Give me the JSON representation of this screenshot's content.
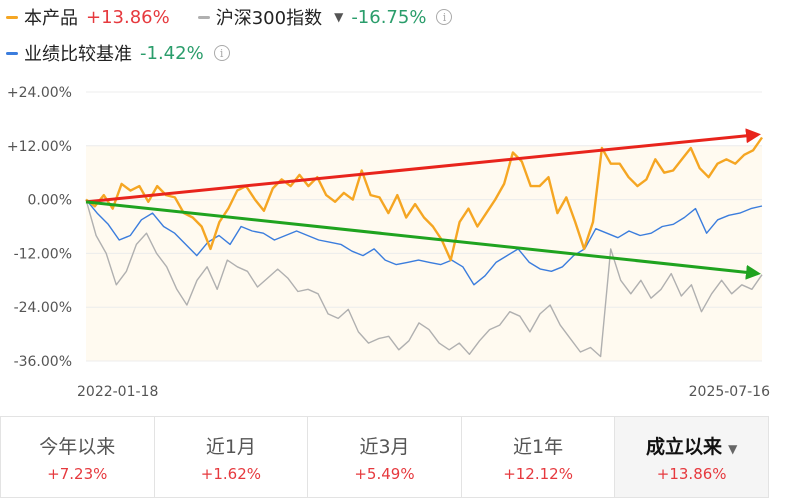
{
  "legend": {
    "product": {
      "name": "本产品",
      "value": "+13.86%",
      "color": "#f5a623"
    },
    "index": {
      "name": "沪深300指数",
      "value": "-16.75%",
      "color": "#b0b0b0",
      "dropdown_icon": "caret-down-icon"
    },
    "benchmark": {
      "name": "业绩比较基准",
      "value": "-1.42%",
      "color": "#3b7ddd"
    },
    "info_icon": "info-circle-icon"
  },
  "chart_data": {
    "type": "line",
    "x_start_label": "2022-01-18",
    "x_end_label": "2025-07-16",
    "y_ticks": [
      "+24.00%",
      "+12.00%",
      "0.00%",
      "-12.00%",
      "-24.00%",
      "-36.00%"
    ],
    "ylim": [
      -36,
      24
    ],
    "series": [
      {
        "name": "本产品",
        "color": "#f5a623",
        "values": [
          0.0,
          -1.5,
          1.0,
          -2.0,
          3.5,
          2.0,
          3.0,
          -0.5,
          3.0,
          1.0,
          0.5,
          -3.0,
          -4.0,
          -6.0,
          -11.0,
          -5.0,
          -2.0,
          2.0,
          3.0,
          0.0,
          -2.5,
          2.5,
          4.5,
          3.0,
          5.5,
          3.0,
          5.0,
          1.0,
          -0.5,
          1.5,
          0.0,
          6.5,
          1.0,
          0.5,
          -3.0,
          1.0,
          -4.0,
          -1.0,
          -4.0,
          -6.0,
          -9.0,
          -13.5,
          -5.0,
          -2.0,
          -6.0,
          -3.0,
          0.0,
          3.5,
          10.5,
          8.5,
          3.0,
          3.0,
          5.0,
          -3.0,
          0.5,
          -5.0,
          -11.0,
          -5.0,
          11.5,
          8.0,
          8.0,
          5.0,
          3.0,
          4.5,
          9.0,
          6.0,
          6.5,
          9.0,
          11.5,
          7.0,
          5.0,
          8.0,
          9.0,
          8.0,
          10.0,
          11.0,
          13.86
        ]
      },
      {
        "name": "沪深300指数",
        "color": "#b0b0b0",
        "values": [
          0.0,
          -8.0,
          -12.0,
          -19.0,
          -16.0,
          -10.0,
          -7.5,
          -12.0,
          -15.0,
          -20.0,
          -23.5,
          -18.0,
          -15.0,
          -20.0,
          -13.5,
          -15.0,
          -16.0,
          -19.5,
          -17.5,
          -15.5,
          -17.5,
          -20.5,
          -20.0,
          -21.0,
          -25.5,
          -26.5,
          -24.5,
          -29.5,
          -32.0,
          -31.0,
          -30.5,
          -33.5,
          -31.5,
          -27.5,
          -29.0,
          -32.0,
          -33.5,
          -32.0,
          -34.5,
          -31.5,
          -29.0,
          -28.0,
          -25.0,
          -26.0,
          -29.5,
          -25.5,
          -23.5,
          -28.0,
          -31.0,
          -34.0,
          -33.0,
          -35.0,
          -11.0,
          -18.0,
          -21.0,
          -18.0,
          -22.0,
          -20.0,
          -16.5,
          -21.5,
          -19.0,
          -25.0,
          -21.0,
          -18.0,
          -21.0,
          -19.0,
          -20.0,
          -16.75
        ]
      },
      {
        "name": "业绩比较基准",
        "color": "#3b7ddd",
        "values": [
          0.0,
          -3.0,
          -5.5,
          -9.0,
          -8.0,
          -4.5,
          -3.0,
          -6.0,
          -7.5,
          -10.0,
          -12.5,
          -9.5,
          -8.0,
          -10.0,
          -6.0,
          -7.0,
          -7.5,
          -9.0,
          -8.0,
          -7.0,
          -8.0,
          -9.0,
          -9.5,
          -10.0,
          -11.5,
          -12.5,
          -11.0,
          -13.5,
          -14.5,
          -14.0,
          -13.5,
          -14.0,
          -14.5,
          -13.5,
          -15.0,
          -19.0,
          -17.0,
          -14.0,
          -12.5,
          -11.0,
          -14.0,
          -15.5,
          -16.0,
          -15.0,
          -12.5,
          -11.0,
          -6.5,
          -7.5,
          -8.5,
          -7.0,
          -8.0,
          -7.5,
          -6.0,
          -5.5,
          -4.0,
          -2.0,
          -7.5,
          -4.5,
          -3.5,
          -3.0,
          -2.0,
          -1.42
        ]
      }
    ],
    "annotations": [
      {
        "type": "trend-arrow",
        "color": "#e8241c",
        "from_pct": -0.5,
        "to_pct": 14.5
      },
      {
        "type": "trend-arrow",
        "color": "#1fa31f",
        "from_pct": -0.5,
        "to_pct": -16.5
      }
    ]
  },
  "tabs": [
    {
      "label": "今年以来",
      "value": "+7.23%",
      "active": false
    },
    {
      "label": "近1月",
      "value": "+1.62%",
      "active": false
    },
    {
      "label": "近3月",
      "value": "+5.49%",
      "active": false
    },
    {
      "label": "近1年",
      "value": "+12.12%",
      "active": false
    },
    {
      "label": "成立以来",
      "value": "+13.86%",
      "active": true,
      "dropdown_icon": "caret-down-icon"
    }
  ]
}
